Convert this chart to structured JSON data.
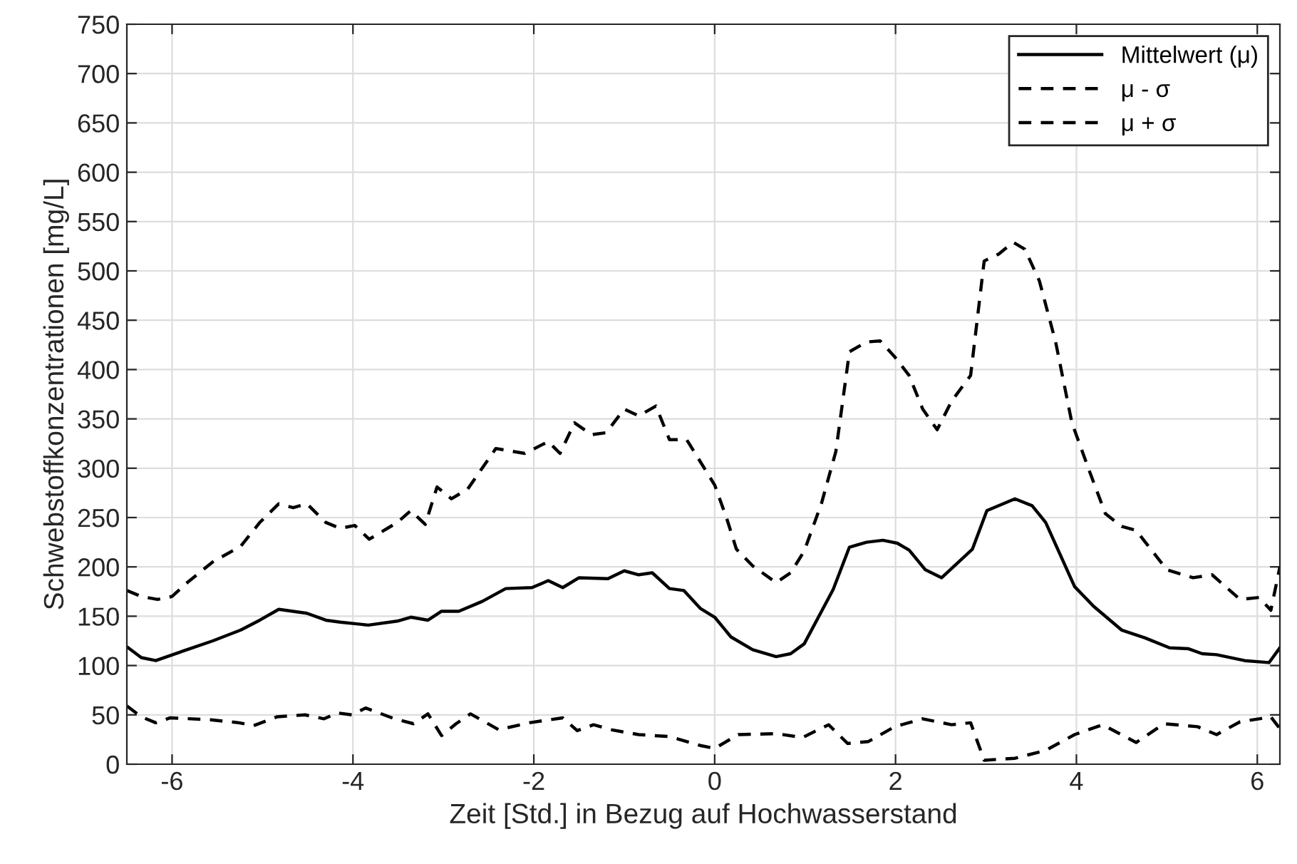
{
  "chart_data": {
    "type": "line",
    "xlabel": "Zeit [Std.] in Bezug auf Hochwasserstand",
    "ylabel": "Schwebstoffkonzentrationen [mg/L]",
    "xlim": [
      -6.5,
      6.25
    ],
    "xticks": [
      -6,
      -4,
      -2,
      0,
      2,
      4,
      6
    ],
    "ylim": [
      0,
      750
    ],
    "yticks": [
      0,
      50,
      100,
      150,
      200,
      250,
      300,
      350,
      400,
      450,
      500,
      550,
      600,
      650,
      700,
      750
    ],
    "grid": true,
    "legend": "top right",
    "marker": "none",
    "series": [
      {
        "name": "Mittelwert (μ)",
        "color": "#000000",
        "line_style": "solid",
        "x": [
          -6.5,
          -6.34,
          -6.18,
          -5.87,
          -5.55,
          -5.24,
          -5.03,
          -4.82,
          -4.51,
          -4.3,
          -4.14,
          -3.83,
          -3.51,
          -3.36,
          -3.17,
          -3.02,
          -2.83,
          -2.57,
          -2.31,
          -2.02,
          -1.84,
          -1.68,
          -1.5,
          -1.18,
          -1.0,
          -0.84,
          -0.69,
          -0.5,
          -0.34,
          -0.16,
          0,
          0.18,
          0.42,
          0.68,
          0.84,
          0.99,
          1.31,
          1.49,
          1.68,
          1.86,
          2.02,
          2.15,
          2.33,
          2.51,
          2.85,
          3.01,
          3.32,
          3.51,
          3.66,
          3.98,
          4.19,
          4.5,
          4.76,
          5.03,
          5.24,
          5.39,
          5.55,
          5.86,
          6.13,
          6.25
        ],
        "values": [
          119,
          108,
          105,
          115,
          125,
          136,
          146,
          157,
          153,
          146,
          144,
          141,
          145,
          149,
          146,
          155,
          155,
          165,
          178,
          179,
          186,
          179,
          189,
          188,
          196,
          192,
          194,
          178,
          176,
          158,
          149,
          129,
          116,
          109,
          112,
          122,
          177,
          220,
          225,
          227,
          224,
          217,
          197,
          189,
          218,
          257,
          269,
          262,
          245,
          180,
          160,
          136,
          128,
          118,
          117,
          112,
          111,
          105,
          103,
          118
        ]
      },
      {
        "name": "μ - σ",
        "color": "#000000",
        "line_style": "dashed",
        "x": [
          -6.5,
          -6.34,
          -6.18,
          -6.02,
          -5.57,
          -5.26,
          -5.1,
          -4.84,
          -4.53,
          -4.32,
          -4.17,
          -4.01,
          -3.86,
          -3.54,
          -3.33,
          -3.17,
          -3.02,
          -2.86,
          -2.7,
          -2.39,
          -2.05,
          -1.68,
          -1.52,
          -1.34,
          -1.15,
          -0.84,
          -0.5,
          -0.16,
          0,
          0.26,
          0.68,
          0.97,
          1.26,
          1.47,
          1.7,
          1.99,
          2.3,
          2.62,
          2.83,
          2.98,
          3.32,
          3.66,
          3.98,
          4.29,
          4.66,
          4.97,
          5.34,
          5.55,
          5.81,
          6.02,
          6.15,
          6.25
        ],
        "values": [
          59,
          48,
          42,
          47,
          45,
          42,
          39,
          48,
          50,
          46,
          52,
          50,
          57,
          46,
          41,
          51,
          29,
          41,
          51,
          35,
          42,
          47,
          34,
          40,
          35,
          30,
          28,
          19,
          16,
          30,
          31,
          27,
          40,
          21,
          23,
          38,
          46,
          40,
          42,
          4,
          6,
          14,
          30,
          40,
          22,
          41,
          38,
          30,
          43,
          46,
          48,
          36
        ]
      },
      {
        "name": "μ + σ",
        "color": "#000000",
        "line_style": "dashed",
        "x": [
          -6.5,
          -6.34,
          -6.16,
          -6.0,
          -5.82,
          -5.55,
          -5.24,
          -5.03,
          -4.82,
          -4.66,
          -4.51,
          -4.3,
          -4.14,
          -3.98,
          -3.82,
          -3.51,
          -3.36,
          -3.2,
          -3.07,
          -2.91,
          -2.73,
          -2.42,
          -2.1,
          -1.84,
          -1.71,
          -1.55,
          -1.36,
          -1.2,
          -1.0,
          -0.84,
          -0.65,
          -0.5,
          -0.31,
          0,
          0.13,
          0.24,
          0.42,
          0.68,
          0.84,
          0.99,
          1.18,
          1.34,
          1.49,
          1.68,
          1.83,
          1.99,
          2.15,
          2.3,
          2.46,
          2.62,
          2.83,
          2.98,
          3.14,
          3.3,
          3.43,
          3.59,
          3.77,
          3.95,
          4.14,
          4.32,
          4.5,
          4.66,
          5.0,
          5.29,
          5.5,
          5.81,
          6.02,
          6.15,
          6.25
        ],
        "values": [
          176,
          170,
          167,
          170,
          185,
          205,
          221,
          245,
          264,
          260,
          264,
          245,
          239,
          242,
          228,
          245,
          257,
          243,
          281,
          269,
          279,
          320,
          315,
          327,
          315,
          346,
          334,
          336,
          360,
          353,
          363,
          329,
          329,
          283,
          250,
          218,
          201,
          184,
          194,
          216,
          264,
          317,
          418,
          428,
          429,
          413,
          394,
          360,
          339,
          368,
          394,
          510,
          517,
          529,
          522,
          490,
          428,
          346,
          298,
          254,
          241,
          237,
          197,
          189,
          192,
          167,
          169,
          156,
          200
        ]
      }
    ]
  }
}
